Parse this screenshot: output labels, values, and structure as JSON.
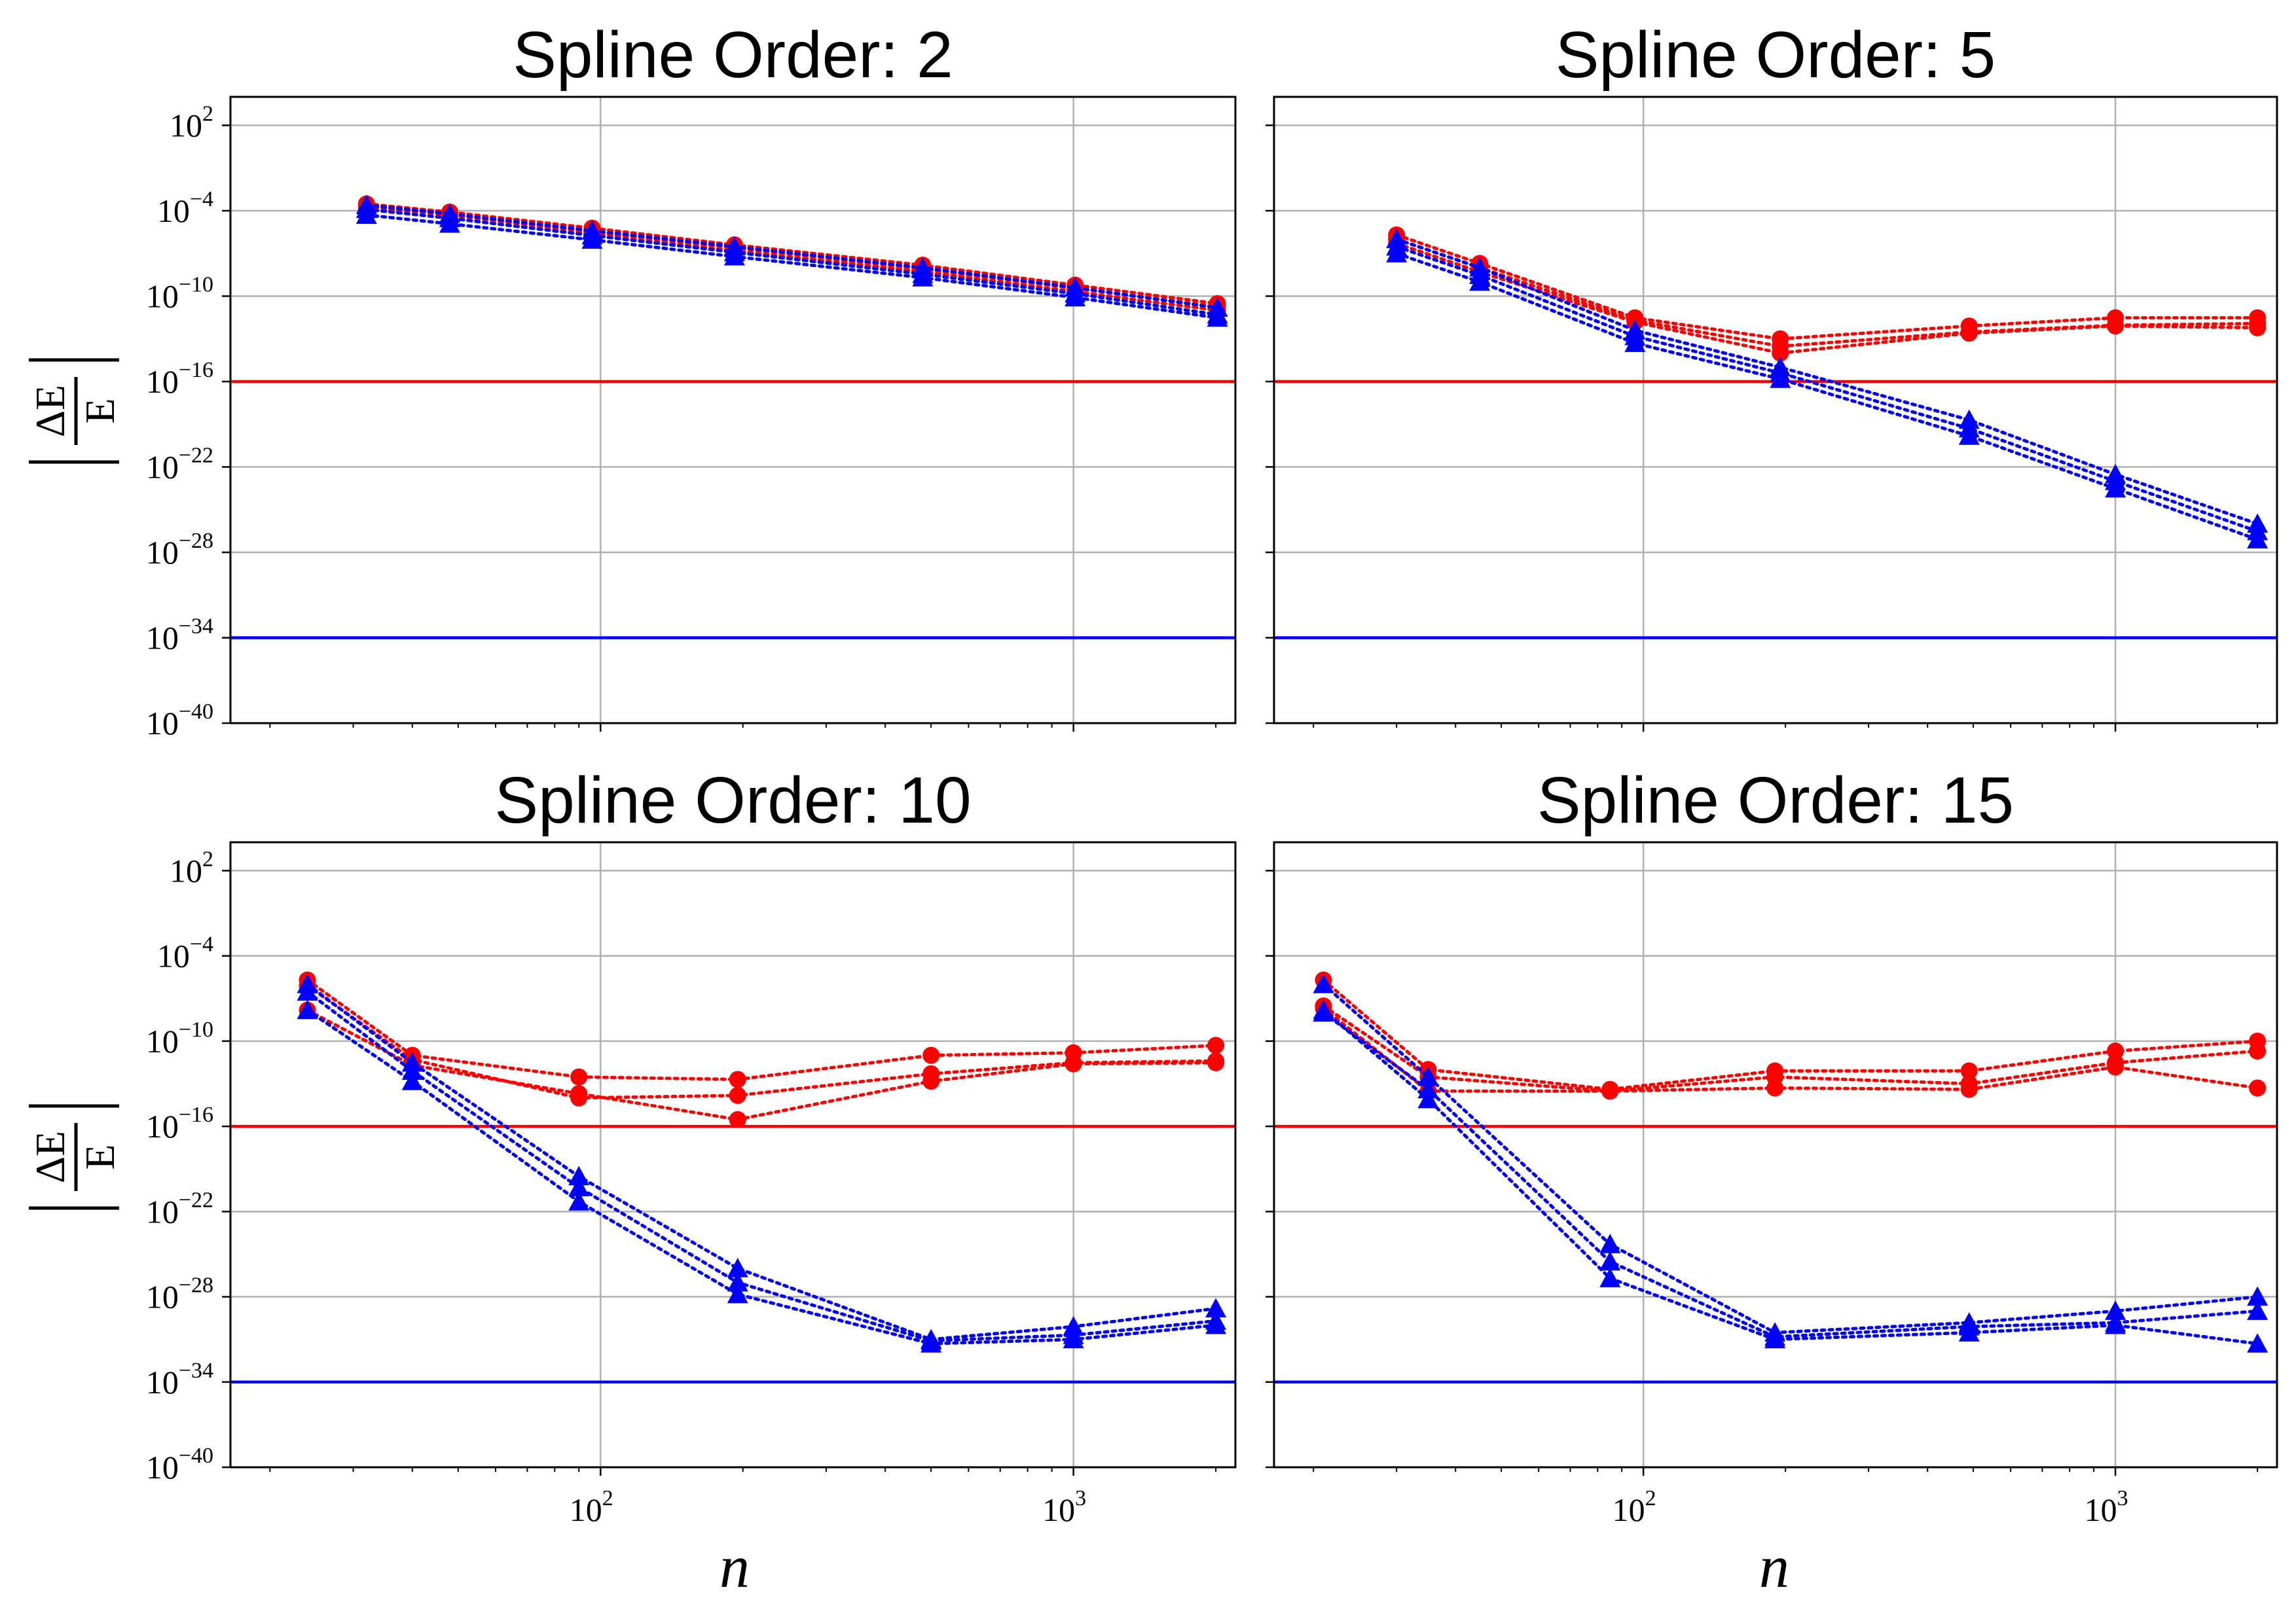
{
  "figure": {
    "ylabel": "|ΔE/E|",
    "xlabel": "n"
  },
  "chart_data": [
    {
      "type": "line",
      "title": "Spline Order: 2",
      "xscale": "log",
      "yscale": "log",
      "xlim": [
        16.5,
        2200
      ],
      "ylim_exp": [
        -40,
        4
      ],
      "grid": true,
      "hlines": [
        {
          "y": 1e-16,
          "color": "#ff0000"
        },
        {
          "y": 1e-34,
          "color": "#0000ff"
        }
      ],
      "series": [
        {
          "color": "#ff0000",
          "marker": "circle",
          "x": [
            32,
            48,
            96,
            192,
            480,
            1008,
            2016
          ],
          "y": [
            0.0003,
            8e-05,
            6e-06,
            4e-07,
            1.5e-08,
            6e-10,
            3e-11
          ]
        },
        {
          "color": "#ff0000",
          "marker": "circle",
          "x": [
            32,
            48,
            96,
            192,
            480,
            1008,
            2016
          ],
          "y": [
            0.0002,
            5e-05,
            3e-06,
            2.5e-07,
            8e-09,
            3.5e-10,
            1.8e-11
          ]
        },
        {
          "color": "#ff0000",
          "marker": "circle",
          "x": [
            32,
            48,
            96,
            192,
            480,
            1008,
            2016
          ],
          "y": [
            0.00012,
            3e-05,
            2e-06,
            1.5e-07,
            5e-09,
            2e-10,
            1e-11
          ]
        },
        {
          "color": "#0000ff",
          "marker": "triangle",
          "x": [
            32,
            48,
            96,
            192,
            480,
            1008,
            2016
          ],
          "y": [
            0.00025,
            6e-05,
            4e-06,
            3e-07,
            1e-08,
            4e-10,
            1.5e-11
          ]
        },
        {
          "color": "#0000ff",
          "marker": "triangle",
          "x": [
            32,
            48,
            96,
            192,
            480,
            1008,
            2016
          ],
          "y": [
            0.00013,
            3e-05,
            1.8e-06,
            1.2e-07,
            3.5e-09,
            1.5e-10,
            5e-12
          ]
        },
        {
          "color": "#0000ff",
          "marker": "triangle",
          "x": [
            32,
            48,
            96,
            192,
            480,
            1008,
            2016
          ],
          "y": [
            5e-05,
            1.2e-05,
            9e-07,
            6e-08,
            2e-09,
            8e-11,
            3e-12
          ]
        }
      ]
    },
    {
      "type": "line",
      "title": "Spline Order: 5",
      "xscale": "log",
      "yscale": "log",
      "xlim": [
        16.5,
        2200
      ],
      "ylim_exp": [
        -40,
        4
      ],
      "grid": true,
      "hlines": [
        {
          "y": 1e-16,
          "color": "#ff0000"
        },
        {
          "y": 1e-34,
          "color": "#0000ff"
        }
      ],
      "series": [
        {
          "color": "#ff0000",
          "marker": "circle",
          "x": [
            30,
            45,
            96,
            195,
            490,
            1000,
            2000
          ],
          "y": [
            2e-06,
            2e-08,
            3e-12,
            1e-13,
            8e-13,
            3e-12,
            3e-12
          ]
        },
        {
          "color": "#ff0000",
          "marker": "circle",
          "x": [
            30,
            45,
            96,
            195,
            490,
            1000,
            2000
          ],
          "y": [
            1e-06,
            1e-08,
            2e-12,
            3e-14,
            3e-13,
            9e-13,
            1.2e-12
          ]
        },
        {
          "color": "#ff0000",
          "marker": "circle",
          "x": [
            30,
            45,
            96,
            195,
            490,
            1000,
            2000
          ],
          "y": [
            5e-07,
            5e-09,
            1.5e-12,
            1e-14,
            2.5e-13,
            8e-13,
            6e-13
          ]
        },
        {
          "color": "#0000ff",
          "marker": "triangle",
          "x": [
            30,
            45,
            96,
            195,
            490,
            1000,
            2000
          ],
          "y": [
            1e-06,
            1e-08,
            4e-13,
            1e-15,
            2e-19,
            3e-23,
            1e-26
          ]
        },
        {
          "color": "#0000ff",
          "marker": "triangle",
          "x": [
            30,
            45,
            96,
            195,
            490,
            1000,
            2000
          ],
          "y": [
            3e-07,
            3e-09,
            1.5e-13,
            4e-16,
            5e-20,
            1e-23,
            3e-27
          ]
        },
        {
          "color": "#0000ff",
          "marker": "triangle",
          "x": [
            30,
            45,
            96,
            195,
            490,
            1000,
            2000
          ],
          "y": [
            1e-07,
            1e-09,
            5e-14,
            1.5e-16,
            1.5e-20,
            3e-24,
            8e-28
          ]
        }
      ]
    },
    {
      "type": "line",
      "title": "Spline Order: 10",
      "xscale": "log",
      "yscale": "log",
      "xlim": [
        16.5,
        2200
      ],
      "ylim_exp": [
        -40,
        4
      ],
      "grid": true,
      "hlines": [
        {
          "y": 1e-16,
          "color": "#ff0000"
        },
        {
          "y": 1e-34,
          "color": "#0000ff"
        }
      ],
      "series": [
        {
          "color": "#ff0000",
          "marker": "circle",
          "x": [
            24,
            40,
            90,
            195,
            500,
            1000,
            2000
          ],
          "y": [
            2e-06,
            1e-11,
            3e-13,
            2e-13,
            1e-11,
            1.5e-11,
            5e-11
          ]
        },
        {
          "color": "#ff0000",
          "marker": "circle",
          "x": [
            24,
            40,
            90,
            195,
            500,
            1000,
            2000
          ],
          "y": [
            8e-07,
            5e-12,
            1e-14,
            1.5e-14,
            5e-13,
            3e-12,
            4e-12
          ]
        },
        {
          "color": "#ff0000",
          "marker": "circle",
          "x": [
            24,
            40,
            90,
            195,
            500,
            1000,
            2000
          ],
          "y": [
            1.5e-08,
            2e-12,
            2e-14,
            3e-16,
            1.5e-13,
            2.5e-12,
            3e-12
          ]
        },
        {
          "color": "#0000ff",
          "marker": "triangle",
          "x": [
            24,
            40,
            90,
            195,
            500,
            1000,
            2000
          ],
          "y": [
            1e-06,
            3e-12,
            3e-20,
            1e-26,
            1e-31,
            8e-31,
            1.5e-29
          ]
        },
        {
          "color": "#0000ff",
          "marker": "triangle",
          "x": [
            24,
            40,
            90,
            195,
            500,
            1000,
            2000
          ],
          "y": [
            3e-07,
            8e-13,
            5e-21,
            1e-27,
            8e-32,
            2e-31,
            2e-30
          ]
        },
        {
          "color": "#0000ff",
          "marker": "triangle",
          "x": [
            24,
            40,
            90,
            195,
            500,
            1000,
            2000
          ],
          "y": [
            1.5e-08,
            1.5e-13,
            5e-22,
            1.5e-28,
            5e-32,
            1e-31,
            1e-30
          ]
        }
      ]
    },
    {
      "type": "line",
      "title": "Spline Order: 15",
      "xscale": "log",
      "yscale": "log",
      "xlim": [
        16.5,
        2200
      ],
      "ylim_exp": [
        -40,
        4
      ],
      "grid": true,
      "hlines": [
        {
          "y": 1e-16,
          "color": "#ff0000"
        },
        {
          "y": 1e-34,
          "color": "#0000ff"
        }
      ],
      "series": [
        {
          "color": "#ff0000",
          "marker": "circle",
          "x": [
            21,
            35,
            85,
            190,
            490,
            1000,
            2000
          ],
          "y": [
            2e-06,
            1e-12,
            4e-14,
            8e-13,
            8e-13,
            2e-11,
            1e-10
          ]
        },
        {
          "color": "#ff0000",
          "marker": "circle",
          "x": [
            21,
            35,
            85,
            190,
            490,
            1000,
            2000
          ],
          "y": [
            3e-08,
            3e-13,
            3e-14,
            3e-13,
            1e-13,
            3e-12,
            2e-11
          ]
        },
        {
          "color": "#ff0000",
          "marker": "circle",
          "x": [
            21,
            35,
            85,
            190,
            490,
            1000,
            2000
          ],
          "y": [
            2e-08,
            3e-14,
            3e-14,
            5e-14,
            4e-14,
            1.5e-12,
            5e-14
          ]
        },
        {
          "color": "#0000ff",
          "marker": "triangle",
          "x": [
            21,
            35,
            85,
            190,
            490,
            1000,
            2000
          ],
          "y": [
            1e-06,
            3e-13,
            5e-25,
            3e-31,
            1.5e-30,
            1e-29,
            1e-28
          ]
        },
        {
          "color": "#0000ff",
          "marker": "triangle",
          "x": [
            21,
            35,
            85,
            190,
            490,
            1000,
            2000
          ],
          "y": [
            1e-08,
            4e-14,
            3e-26,
            1.5e-31,
            8e-31,
            1.5e-30,
            1e-29
          ]
        },
        {
          "color": "#0000ff",
          "marker": "triangle",
          "x": [
            21,
            35,
            85,
            190,
            490,
            1000,
            2000
          ],
          "y": [
            1.5e-08,
            8e-15,
            2e-27,
            1e-31,
            3e-31,
            1e-30,
            5e-32
          ]
        }
      ]
    }
  ]
}
